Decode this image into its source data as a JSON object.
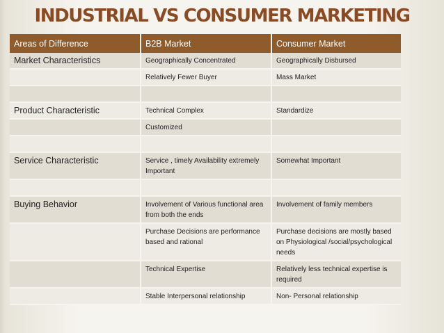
{
  "title": "INDUSTRIAL VS CONSUMER MARKETING",
  "headers": [
    "Areas of  Difference",
    "B2B  Market",
    "Consumer Market"
  ],
  "rows": [
    [
      "Market Characteristics",
      "Geographically Concentrated",
      "Geographically Disbursed"
    ],
    [
      "",
      "Relatively Fewer Buyer",
      "Mass Market"
    ],
    [
      "",
      "",
      ""
    ],
    [
      "Product Characteristic",
      "Technical Complex",
      "Standardize"
    ],
    [
      "",
      "Customized",
      ""
    ],
    [
      "",
      "",
      ""
    ],
    [
      "Service Characteristic",
      "Service , timely Availability extremely Important",
      "Somewhat Important"
    ],
    [
      "",
      "",
      ""
    ],
    [
      "Buying Behavior",
      "Involvement of Various functional area from both the ends",
      "Involvement of family  members"
    ],
    [
      "",
      "Purchase Decisions are performance based and rational",
      "Purchase decisions are mostly based on Physiological /social/psychological needs"
    ],
    [
      "",
      "Technical Expertise",
      "Relatively less technical expertise is required"
    ],
    [
      "",
      "Stable Interpersonal relationship",
      "Non- Personal relationship"
    ]
  ],
  "colors": {
    "title": "#8a4a23",
    "header_bg": "#8f5b2a",
    "band_a": "#e2ddd2",
    "band_b": "#eeebe4"
  }
}
